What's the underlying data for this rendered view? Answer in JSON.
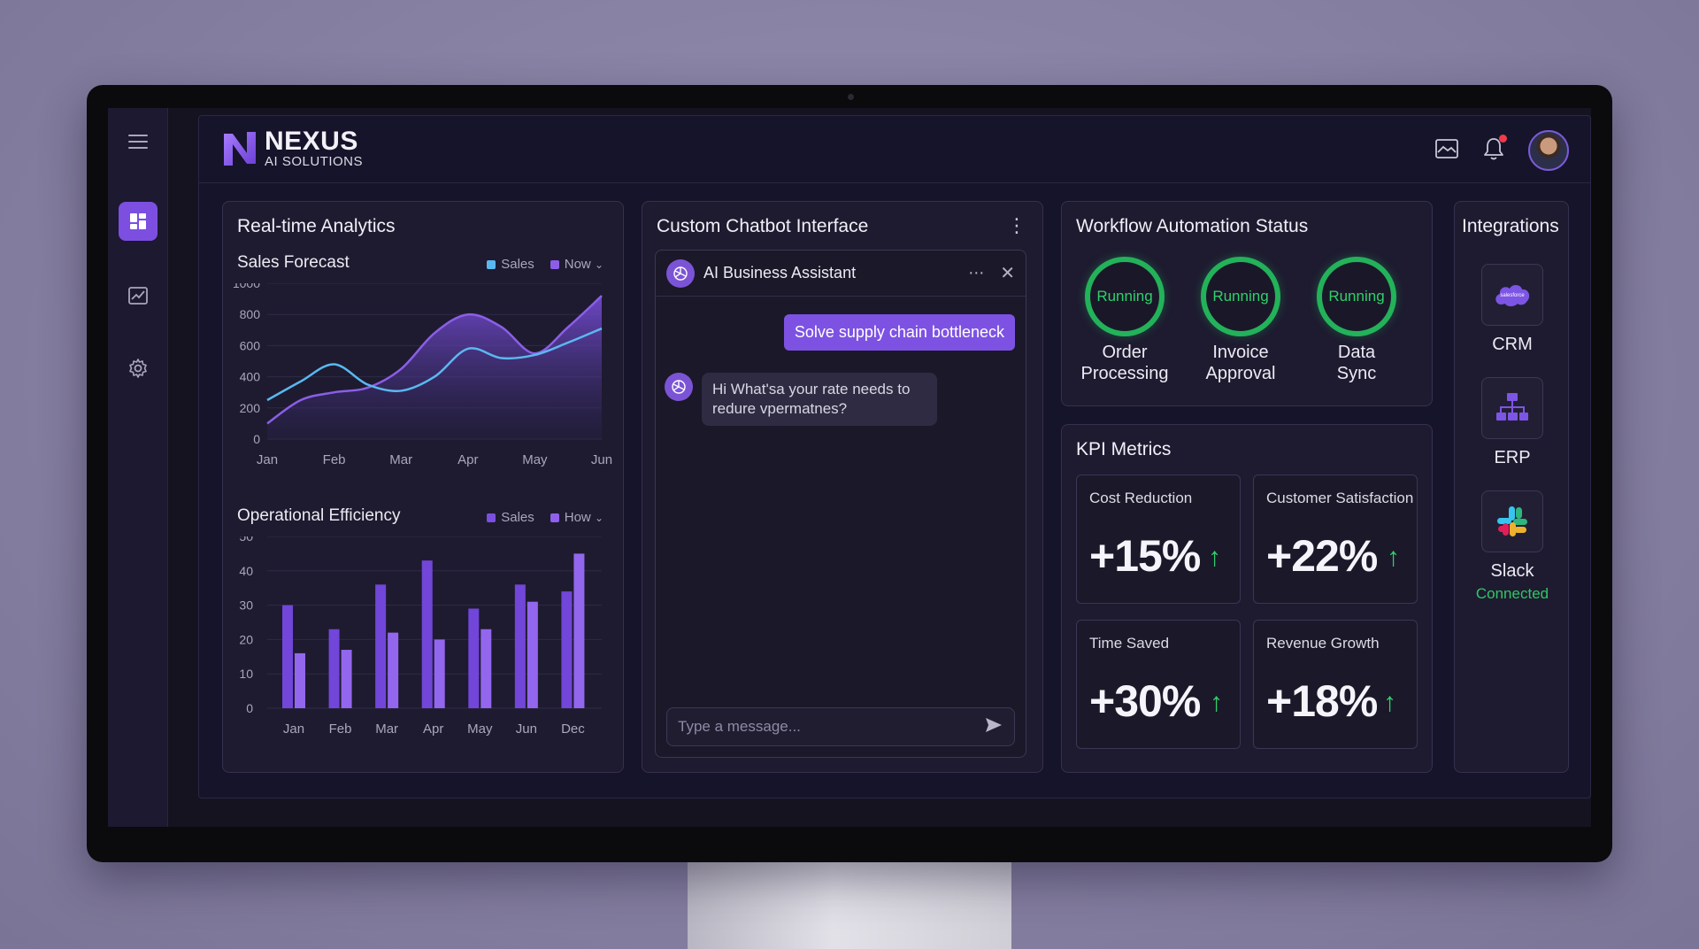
{
  "brand": {
    "name": "NEXUS",
    "subtitle": "AI SOLUTIONS",
    "accent": "#7c4fe0"
  },
  "sidebar": {
    "items": [
      {
        "icon": "hamburger-menu-icon"
      },
      {
        "icon": "dashboard-grid-icon",
        "active": true
      },
      {
        "icon": "analytics-chart-icon"
      },
      {
        "icon": "settings-gear-icon"
      }
    ]
  },
  "topbar": {
    "icons": [
      "inbox-image-icon",
      "bell-icon",
      "user-avatar"
    ]
  },
  "analytics": {
    "title": "Real-time Analytics",
    "sales_forecast": {
      "title": "Sales Forecast",
      "legend": [
        "Sales",
        "Now"
      ]
    },
    "operational": {
      "title": "Operational Efficiency",
      "legend": [
        "Sales",
        "How"
      ]
    }
  },
  "chart_data": [
    {
      "type": "area",
      "title": "Sales Forecast",
      "categories": [
        "Jan",
        "Feb",
        "Mar",
        "Apr",
        "May",
        "Jun"
      ],
      "x": [
        0,
        0.5,
        1,
        1.5,
        2,
        2.5,
        3,
        3.5,
        4,
        4.5,
        5
      ],
      "yticks": [
        0,
        200,
        400,
        600,
        800,
        1000
      ],
      "ylim": [
        0,
        1000
      ],
      "series": [
        {
          "name": "Sales",
          "color": "#5ab8f0",
          "values": [
            250,
            370,
            480,
            350,
            310,
            400,
            580,
            520,
            540,
            620,
            710
          ]
        },
        {
          "name": "Now",
          "color": "#8c5ee8",
          "values": [
            100,
            250,
            300,
            330,
            450,
            680,
            800,
            720,
            550,
            720,
            920
          ]
        }
      ],
      "legend_position": "top-right"
    },
    {
      "type": "bar",
      "title": "Operational Efficiency",
      "categories": [
        "Jan",
        "Feb",
        "Mar",
        "Apr",
        "May",
        "Jun",
        "Dec"
      ],
      "yticks": [
        0,
        10,
        20,
        30,
        40,
        50
      ],
      "ylim": [
        0,
        50
      ],
      "series": [
        {
          "name": "Sales",
          "color": "#7b4fe0",
          "values": [
            30,
            23,
            36,
            43,
            29,
            36,
            34
          ]
        },
        {
          "name": "How",
          "color": "#8f60ec",
          "values": [
            16,
            17,
            22,
            20,
            23,
            31,
            45
          ]
        }
      ],
      "legend_position": "top-right"
    }
  ],
  "chatbot": {
    "panel_title": "Custom Chatbot Interface",
    "assistant_name": "AI Business Assistant",
    "user_message": "Solve supply chain bottleneck",
    "bot_message": "Hi What'sa your rate needs to redure vpermatnes?",
    "input_placeholder": "Type a message..."
  },
  "workflow": {
    "title": "Workflow Automation Status",
    "items": [
      {
        "status": "Running",
        "line1": "Order",
        "line2": "Processing"
      },
      {
        "status": "Running",
        "line1": "Invoice",
        "line2": "Approval"
      },
      {
        "status": "Running",
        "line1": "Data",
        "line2": "Sync"
      }
    ],
    "status_color": "#23b25a"
  },
  "kpi": {
    "title": "KPI Metrics",
    "cards": [
      {
        "label": "Cost Reduction",
        "value": "+15%"
      },
      {
        "label": "Customer Satisfaction",
        "value": "+22%"
      },
      {
        "label": "Time Saved",
        "value": "+30%"
      },
      {
        "label": "Revenue Growth",
        "value": "+18%"
      }
    ],
    "trend_color": "#2fd06b"
  },
  "integrations": {
    "title": "Integrations",
    "items": [
      {
        "label": "CRM",
        "icon": "salesforce-cloud-icon",
        "logo_text": "salesforce"
      },
      {
        "label": "ERP",
        "icon": "erp-hierarchy-icon"
      },
      {
        "label": "Slack",
        "icon": "slack-logo-icon",
        "status": "Connected"
      }
    ]
  }
}
